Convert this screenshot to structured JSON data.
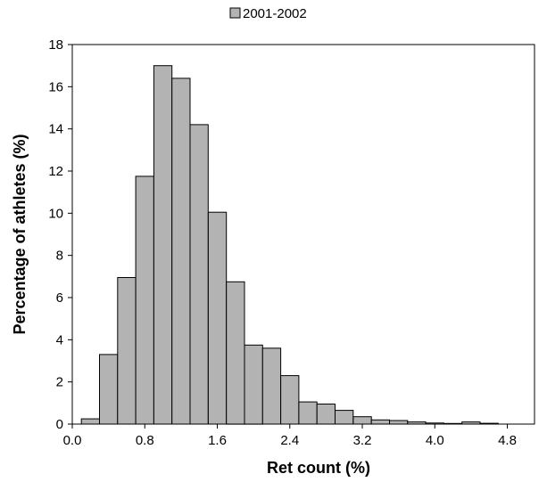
{
  "chart_data": {
    "type": "bar",
    "legend": {
      "label": "2001-2002",
      "placement": "top-center"
    },
    "series": [
      {
        "name": "2001-2002",
        "color": "#b3b3b3",
        "bins": [
          {
            "x0": 0.1,
            "x1": 0.3,
            "value": 0.25
          },
          {
            "x0": 0.3,
            "x1": 0.5,
            "value": 3.3
          },
          {
            "x0": 0.5,
            "x1": 0.7,
            "value": 6.95
          },
          {
            "x0": 0.7,
            "x1": 0.9,
            "value": 11.75
          },
          {
            "x0": 0.9,
            "x1": 1.1,
            "value": 17.0
          },
          {
            "x0": 1.1,
            "x1": 1.3,
            "value": 16.4
          },
          {
            "x0": 1.3,
            "x1": 1.5,
            "value": 14.2
          },
          {
            "x0": 1.5,
            "x1": 1.7,
            "value": 10.05
          },
          {
            "x0": 1.7,
            "x1": 1.9,
            "value": 6.75
          },
          {
            "x0": 1.9,
            "x1": 2.1,
            "value": 3.75
          },
          {
            "x0": 2.1,
            "x1": 2.3,
            "value": 3.6
          },
          {
            "x0": 2.3,
            "x1": 2.5,
            "value": 2.3
          },
          {
            "x0": 2.5,
            "x1": 2.7,
            "value": 1.05
          },
          {
            "x0": 2.7,
            "x1": 2.9,
            "value": 0.95
          },
          {
            "x0": 2.9,
            "x1": 3.1,
            "value": 0.65
          },
          {
            "x0": 3.1,
            "x1": 3.3,
            "value": 0.35
          },
          {
            "x0": 3.3,
            "x1": 3.5,
            "value": 0.2
          },
          {
            "x0": 3.5,
            "x1": 3.7,
            "value": 0.17
          },
          {
            "x0": 3.7,
            "x1": 3.9,
            "value": 0.1
          },
          {
            "x0": 3.9,
            "x1": 4.1,
            "value": 0.05
          },
          {
            "x0": 4.1,
            "x1": 4.3,
            "value": 0.03
          },
          {
            "x0": 4.3,
            "x1": 4.5,
            "value": 0.1
          },
          {
            "x0": 4.5,
            "x1": 4.7,
            "value": 0.04
          }
        ]
      }
    ],
    "xlabel": "Ret count (%)",
    "ylabel": "Percentage of athletes (%)",
    "xlim": [
      0.0,
      5.1
    ],
    "ylim": [
      0,
      18
    ],
    "xticks": [
      0.0,
      0.8,
      1.6,
      2.4,
      3.2,
      4.0,
      4.8
    ],
    "xtick_labels": [
      "0.0",
      "0.8",
      "1.6",
      "2.4",
      "3.2",
      "4.0",
      "4.8"
    ],
    "yticks": [
      0,
      2,
      4,
      6,
      8,
      10,
      12,
      14,
      16,
      18
    ],
    "ytick_labels": [
      "0",
      "2",
      "4",
      "6",
      "8",
      "10",
      "12",
      "14",
      "16",
      "18"
    ],
    "grid": false
  }
}
